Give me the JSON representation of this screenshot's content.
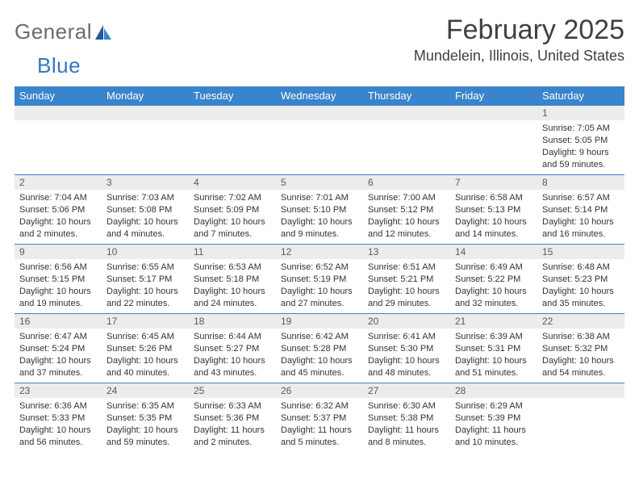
{
  "logo": {
    "word1": "General",
    "word2": "Blue"
  },
  "title": {
    "month": "February 2025",
    "location": "Mundelein, Illinois, United States"
  },
  "calendar": {
    "header_bg": "#3a84cb",
    "header_fg": "#ffffff",
    "daynum_bg": "#ececec",
    "row_border": "#3a84cb",
    "days": [
      "Sunday",
      "Monday",
      "Tuesday",
      "Wednesday",
      "Thursday",
      "Friday",
      "Saturday"
    ],
    "weeks": [
      [
        {
          "n": "",
          "sunrise": "",
          "sunset": "",
          "daylight": ""
        },
        {
          "n": "",
          "sunrise": "",
          "sunset": "",
          "daylight": ""
        },
        {
          "n": "",
          "sunrise": "",
          "sunset": "",
          "daylight": ""
        },
        {
          "n": "",
          "sunrise": "",
          "sunset": "",
          "daylight": ""
        },
        {
          "n": "",
          "sunrise": "",
          "sunset": "",
          "daylight": ""
        },
        {
          "n": "",
          "sunrise": "",
          "sunset": "",
          "daylight": ""
        },
        {
          "n": "1",
          "sunrise": "Sunrise: 7:05 AM",
          "sunset": "Sunset: 5:05 PM",
          "daylight": "Daylight: 9 hours and 59 minutes."
        }
      ],
      [
        {
          "n": "2",
          "sunrise": "Sunrise: 7:04 AM",
          "sunset": "Sunset: 5:06 PM",
          "daylight": "Daylight: 10 hours and 2 minutes."
        },
        {
          "n": "3",
          "sunrise": "Sunrise: 7:03 AM",
          "sunset": "Sunset: 5:08 PM",
          "daylight": "Daylight: 10 hours and 4 minutes."
        },
        {
          "n": "4",
          "sunrise": "Sunrise: 7:02 AM",
          "sunset": "Sunset: 5:09 PM",
          "daylight": "Daylight: 10 hours and 7 minutes."
        },
        {
          "n": "5",
          "sunrise": "Sunrise: 7:01 AM",
          "sunset": "Sunset: 5:10 PM",
          "daylight": "Daylight: 10 hours and 9 minutes."
        },
        {
          "n": "6",
          "sunrise": "Sunrise: 7:00 AM",
          "sunset": "Sunset: 5:12 PM",
          "daylight": "Daylight: 10 hours and 12 minutes."
        },
        {
          "n": "7",
          "sunrise": "Sunrise: 6:58 AM",
          "sunset": "Sunset: 5:13 PM",
          "daylight": "Daylight: 10 hours and 14 minutes."
        },
        {
          "n": "8",
          "sunrise": "Sunrise: 6:57 AM",
          "sunset": "Sunset: 5:14 PM",
          "daylight": "Daylight: 10 hours and 16 minutes."
        }
      ],
      [
        {
          "n": "9",
          "sunrise": "Sunrise: 6:56 AM",
          "sunset": "Sunset: 5:15 PM",
          "daylight": "Daylight: 10 hours and 19 minutes."
        },
        {
          "n": "10",
          "sunrise": "Sunrise: 6:55 AM",
          "sunset": "Sunset: 5:17 PM",
          "daylight": "Daylight: 10 hours and 22 minutes."
        },
        {
          "n": "11",
          "sunrise": "Sunrise: 6:53 AM",
          "sunset": "Sunset: 5:18 PM",
          "daylight": "Daylight: 10 hours and 24 minutes."
        },
        {
          "n": "12",
          "sunrise": "Sunrise: 6:52 AM",
          "sunset": "Sunset: 5:19 PM",
          "daylight": "Daylight: 10 hours and 27 minutes."
        },
        {
          "n": "13",
          "sunrise": "Sunrise: 6:51 AM",
          "sunset": "Sunset: 5:21 PM",
          "daylight": "Daylight: 10 hours and 29 minutes."
        },
        {
          "n": "14",
          "sunrise": "Sunrise: 6:49 AM",
          "sunset": "Sunset: 5:22 PM",
          "daylight": "Daylight: 10 hours and 32 minutes."
        },
        {
          "n": "15",
          "sunrise": "Sunrise: 6:48 AM",
          "sunset": "Sunset: 5:23 PM",
          "daylight": "Daylight: 10 hours and 35 minutes."
        }
      ],
      [
        {
          "n": "16",
          "sunrise": "Sunrise: 6:47 AM",
          "sunset": "Sunset: 5:24 PM",
          "daylight": "Daylight: 10 hours and 37 minutes."
        },
        {
          "n": "17",
          "sunrise": "Sunrise: 6:45 AM",
          "sunset": "Sunset: 5:26 PM",
          "daylight": "Daylight: 10 hours and 40 minutes."
        },
        {
          "n": "18",
          "sunrise": "Sunrise: 6:44 AM",
          "sunset": "Sunset: 5:27 PM",
          "daylight": "Daylight: 10 hours and 43 minutes."
        },
        {
          "n": "19",
          "sunrise": "Sunrise: 6:42 AM",
          "sunset": "Sunset: 5:28 PM",
          "daylight": "Daylight: 10 hours and 45 minutes."
        },
        {
          "n": "20",
          "sunrise": "Sunrise: 6:41 AM",
          "sunset": "Sunset: 5:30 PM",
          "daylight": "Daylight: 10 hours and 48 minutes."
        },
        {
          "n": "21",
          "sunrise": "Sunrise: 6:39 AM",
          "sunset": "Sunset: 5:31 PM",
          "daylight": "Daylight: 10 hours and 51 minutes."
        },
        {
          "n": "22",
          "sunrise": "Sunrise: 6:38 AM",
          "sunset": "Sunset: 5:32 PM",
          "daylight": "Daylight: 10 hours and 54 minutes."
        }
      ],
      [
        {
          "n": "23",
          "sunrise": "Sunrise: 6:36 AM",
          "sunset": "Sunset: 5:33 PM",
          "daylight": "Daylight: 10 hours and 56 minutes."
        },
        {
          "n": "24",
          "sunrise": "Sunrise: 6:35 AM",
          "sunset": "Sunset: 5:35 PM",
          "daylight": "Daylight: 10 hours and 59 minutes."
        },
        {
          "n": "25",
          "sunrise": "Sunrise: 6:33 AM",
          "sunset": "Sunset: 5:36 PM",
          "daylight": "Daylight: 11 hours and 2 minutes."
        },
        {
          "n": "26",
          "sunrise": "Sunrise: 6:32 AM",
          "sunset": "Sunset: 5:37 PM",
          "daylight": "Daylight: 11 hours and 5 minutes."
        },
        {
          "n": "27",
          "sunrise": "Sunrise: 6:30 AM",
          "sunset": "Sunset: 5:38 PM",
          "daylight": "Daylight: 11 hours and 8 minutes."
        },
        {
          "n": "28",
          "sunrise": "Sunrise: 6:29 AM",
          "sunset": "Sunset: 5:39 PM",
          "daylight": "Daylight: 11 hours and 10 minutes."
        },
        {
          "n": "",
          "sunrise": "",
          "sunset": "",
          "daylight": ""
        }
      ]
    ]
  }
}
